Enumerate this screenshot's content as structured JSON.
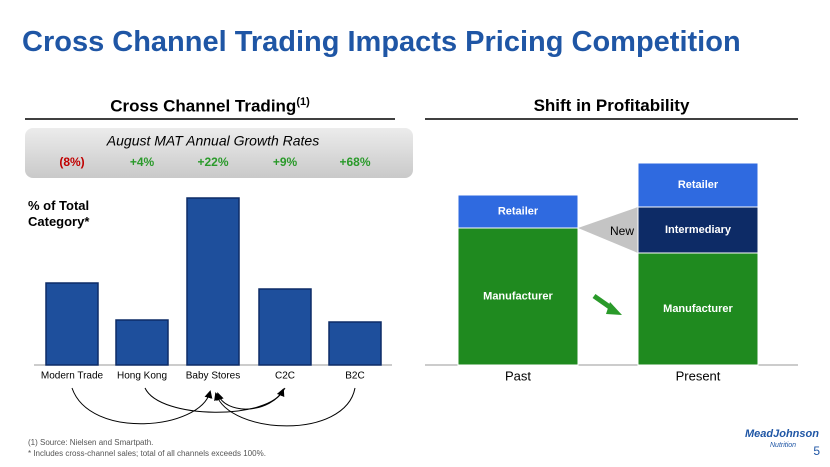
{
  "slide": {
    "title": "Cross Channel Trading Impacts Pricing Competition",
    "footnotes": [
      "(1)  Source: Nielsen and Smartpath.",
      "* Includes cross-channel sales; total of all channels exceeds 100%."
    ],
    "page_number": "5",
    "logo": [
      "MeadJohnson",
      "Nutrition"
    ]
  },
  "chart_data": [
    {
      "type": "bar",
      "title": "Cross Channel Trading",
      "title_note": "(1)",
      "growth_title": "August MAT Annual Growth Rates",
      "growth_values": [
        -8,
        4,
        22,
        9,
        68
      ],
      "growth_labels": [
        "(8%)",
        "+4%",
        "+22%",
        "+9%",
        "+68%"
      ],
      "ylabel": "% of Total Category*",
      "categories": [
        "Modern Trade",
        "Hong Kong",
        "Baby Stores",
        "C2C",
        "B2C"
      ],
      "values": [
        82,
        45,
        167,
        76,
        43
      ],
      "color": "#1e4f9c"
    },
    {
      "type": "stacked_bar",
      "title": "Shift in Profitability",
      "categories": [
        "Past",
        "Present"
      ],
      "series": [
        {
          "name": "Manufacturer",
          "color": "#1f8a1f",
          "values": [
            137,
            112
          ]
        },
        {
          "name": "Intermediary",
          "color": "#0d2b66",
          "values": [
            null,
            46
          ]
        },
        {
          "name": "Retailer",
          "color": "#2f6ae0",
          "values": [
            33,
            44
          ]
        }
      ],
      "annotation": "New"
    }
  ]
}
